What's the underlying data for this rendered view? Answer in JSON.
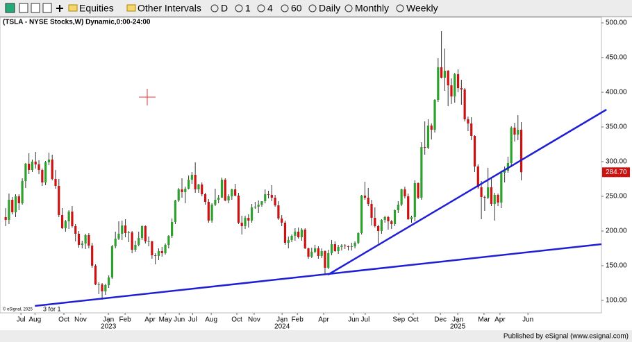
{
  "toolbar": {
    "items": [
      "Equities",
      "Other Intervals",
      "D",
      "1",
      "4",
      "60",
      "Daily",
      "Monthly",
      "Weekly"
    ]
  },
  "chart_data": {
    "type": "candlestick",
    "title": "(TSLA - NYSE Stocks,W) Dynamic,0:00-24:00",
    "up_color": "#2ea02e",
    "down_color": "#cc1111",
    "wick_color": "#333333",
    "ylim": [
      83,
      508
    ],
    "yticks": [
      {
        "value": 100,
        "label": "100.00"
      },
      {
        "value": 150,
        "label": "150.00"
      },
      {
        "value": 200,
        "label": "200.00"
      },
      {
        "value": 250,
        "label": "250.00"
      },
      {
        "value": 300,
        "label": "300.00"
      },
      {
        "value": 350,
        "label": "350.00"
      },
      {
        "value": 400,
        "label": "400.00"
      },
      {
        "value": 450,
        "label": "450.00"
      },
      {
        "value": 500,
        "label": "500.00"
      }
    ],
    "xlim": [
      -1.7,
      179.1
    ],
    "xticks": [
      {
        "value": 4.6,
        "label": "Jul"
      },
      {
        "value": 8.8,
        "label": "Aug"
      },
      {
        "value": 17.5,
        "label": "Oct"
      },
      {
        "value": 22.5,
        "label": "Nov"
      },
      {
        "value": 30.9,
        "label": "Jan"
      },
      {
        "value": 35.9,
        "label": "Feb"
      },
      {
        "value": 43.4,
        "label": "Apr"
      },
      {
        "value": 48,
        "label": "May"
      },
      {
        "value": 52.2,
        "label": "Jun"
      },
      {
        "value": 56.2,
        "label": "Jul"
      },
      {
        "value": 61.8,
        "label": "Aug"
      },
      {
        "value": 69.5,
        "label": "Oct"
      },
      {
        "value": 74.7,
        "label": "Nov"
      },
      {
        "value": 83.1,
        "label": "Jan"
      },
      {
        "value": 87.7,
        "label": "Feb"
      },
      {
        "value": 95.6,
        "label": "Apr"
      },
      {
        "value": 104.6,
        "label": "Jun"
      },
      {
        "value": 108.1,
        "label": "Jul"
      },
      {
        "value": 118.2,
        "label": "Sep"
      },
      {
        "value": 122.5,
        "label": "Oct"
      },
      {
        "value": 130.7,
        "label": "Dec"
      },
      {
        "value": 135.9,
        "label": "Jan"
      },
      {
        "value": 143.8,
        "label": "Mar"
      },
      {
        "value": 148.6,
        "label": "Apr"
      },
      {
        "value": 157,
        "label": "Jun"
      }
    ],
    "year_ticks": [
      {
        "value": 30.9,
        "label": "2023"
      },
      {
        "value": 83.1,
        "label": "2024"
      },
      {
        "value": 135.9,
        "label": "2025"
      }
    ],
    "candles": [
      [
        220,
        233,
        207,
        216
      ],
      [
        216,
        254,
        210,
        245
      ],
      [
        245,
        249,
        224,
        227
      ],
      [
        227,
        253,
        220,
        250
      ],
      [
        250,
        253,
        230,
        240
      ],
      [
        240,
        276,
        238,
        272
      ],
      [
        272,
        298,
        262,
        297
      ],
      [
        297,
        312,
        282,
        288
      ],
      [
        288,
        303,
        285,
        300
      ],
      [
        300,
        314,
        290,
        296
      ],
      [
        296,
        302,
        282,
        288
      ],
      [
        288,
        290,
        265,
        270
      ],
      [
        270,
        301,
        266,
        299
      ],
      [
        299,
        313,
        295,
        303
      ],
      [
        303,
        310,
        273,
        275
      ],
      [
        275,
        288,
        261,
        265
      ],
      [
        265,
        275,
        220,
        223
      ],
      [
        223,
        233,
        203,
        204
      ],
      [
        204,
        216,
        199,
        214
      ],
      [
        214,
        230,
        203,
        228
      ],
      [
        228,
        236,
        205,
        207
      ],
      [
        207,
        210,
        185,
        196
      ],
      [
        196,
        200,
        176,
        180
      ],
      [
        180,
        186,
        175,
        182
      ],
      [
        182,
        196,
        174,
        194
      ],
      [
        194,
        197,
        175,
        179
      ],
      [
        179,
        183,
        147,
        150
      ],
      [
        150,
        152,
        122,
        123
      ],
      [
        123,
        126,
        109,
        123
      ],
      [
        123,
        125,
        101,
        113
      ],
      [
        113,
        124,
        108,
        122
      ],
      [
        122,
        136,
        118,
        133
      ],
      [
        133,
        180,
        131,
        178
      ],
      [
        178,
        199,
        175,
        189
      ],
      [
        189,
        214,
        187,
        196
      ],
      [
        196,
        215,
        187,
        208
      ],
      [
        208,
        217,
        191,
        197
      ],
      [
        197,
        200,
        184,
        198
      ],
      [
        198,
        200,
        168,
        173
      ],
      [
        173,
        186,
        170,
        180
      ],
      [
        180,
        199,
        178,
        190
      ],
      [
        190,
        208,
        187,
        207
      ],
      [
        207,
        208,
        182,
        185
      ],
      [
        185,
        192,
        178,
        185
      ],
      [
        185,
        186,
        160,
        165
      ],
      [
        165,
        168,
        152,
        164
      ],
      [
        164,
        175,
        158,
        171
      ],
      [
        171,
        177,
        163,
        168
      ],
      [
        168,
        182,
        166,
        180
      ],
      [
        180,
        194,
        175,
        193
      ],
      [
        193,
        218,
        190,
        213
      ],
      [
        213,
        245,
        210,
        244
      ],
      [
        244,
        262,
        242,
        260
      ],
      [
        260,
        276,
        248,
        256
      ],
      [
        256,
        264,
        240,
        261
      ],
      [
        261,
        280,
        260,
        274
      ],
      [
        274,
        285,
        268,
        281
      ],
      [
        281,
        299,
        255,
        260
      ],
      [
        260,
        268,
        255,
        267
      ],
      [
        267,
        270,
        250,
        253
      ],
      [
        253,
        255,
        238,
        242
      ],
      [
        242,
        246,
        212,
        215
      ],
      [
        215,
        240,
        212,
        238
      ],
      [
        238,
        261,
        236,
        245
      ],
      [
        245,
        252,
        240,
        248
      ],
      [
        248,
        277,
        248,
        274
      ],
      [
        274,
        276,
        243,
        244
      ],
      [
        244,
        253,
        240,
        250
      ],
      [
        250,
        261,
        245,
        260
      ],
      [
        260,
        268,
        250,
        251
      ],
      [
        251,
        255,
        210,
        212
      ],
      [
        212,
        222,
        195,
        207
      ],
      [
        207,
        222,
        203,
        219
      ],
      [
        219,
        224,
        205,
        215
      ],
      [
        215,
        239,
        212,
        234
      ],
      [
        234,
        242,
        232,
        235
      ],
      [
        235,
        244,
        226,
        238
      ],
      [
        238,
        243,
        235,
        243
      ],
      [
        243,
        260,
        240,
        253
      ],
      [
        253,
        258,
        247,
        252
      ],
      [
        252,
        266,
        243,
        248
      ],
      [
        248,
        252,
        235,
        237
      ],
      [
        237,
        243,
        216,
        218
      ],
      [
        218,
        223,
        207,
        212
      ],
      [
        212,
        215,
        180,
        183
      ],
      [
        183,
        192,
        175,
        187
      ],
      [
        187,
        195,
        184,
        193
      ],
      [
        193,
        204,
        186,
        199
      ],
      [
        199,
        205,
        189,
        191
      ],
      [
        191,
        204,
        186,
        202
      ],
      [
        202,
        204,
        174,
        175
      ],
      [
        175,
        176,
        160,
        163
      ],
      [
        163,
        176,
        161,
        170
      ],
      [
        170,
        180,
        168,
        175
      ],
      [
        175,
        178,
        160,
        164
      ],
      [
        164,
        175,
        161,
        171
      ],
      [
        171,
        172,
        138,
        147
      ],
      [
        147,
        173,
        145,
        168
      ],
      [
        168,
        187,
        165,
        181
      ],
      [
        181,
        185,
        170,
        171
      ],
      [
        171,
        180,
        167,
        177
      ],
      [
        177,
        181,
        172,
        179
      ],
      [
        179,
        181,
        174,
        178
      ],
      [
        178,
        179,
        172,
        177
      ],
      [
        177,
        183,
        172,
        178
      ],
      [
        178,
        185,
        175,
        183
      ],
      [
        183,
        198,
        181,
        197
      ],
      [
        197,
        252,
        195,
        251
      ],
      [
        251,
        271,
        245,
        248
      ],
      [
        248,
        262,
        236,
        239
      ],
      [
        239,
        245,
        208,
        219
      ],
      [
        219,
        234,
        205,
        207
      ],
      [
        207,
        209,
        182,
        200
      ],
      [
        200,
        217,
        196,
        216
      ],
      [
        216,
        222,
        212,
        220
      ],
      [
        220,
        222,
        202,
        214
      ],
      [
        214,
        216,
        203,
        210
      ],
      [
        210,
        231,
        207,
        230
      ],
      [
        230,
        243,
        226,
        238
      ],
      [
        238,
        261,
        236,
        260
      ],
      [
        260,
        264,
        247,
        250
      ],
      [
        250,
        254,
        216,
        217
      ],
      [
        217,
        222,
        212,
        220
      ],
      [
        220,
        273,
        214,
        269
      ],
      [
        269,
        270,
        246,
        248
      ],
      [
        248,
        328,
        245,
        321
      ],
      [
        321,
        358,
        310,
        320
      ],
      [
        320,
        361,
        318,
        352
      ],
      [
        352,
        355,
        332,
        346
      ],
      [
        346,
        390,
        342,
        389
      ],
      [
        389,
        449,
        386,
        436
      ],
      [
        436,
        488,
        420,
        421
      ],
      [
        421,
        463,
        402,
        431
      ],
      [
        431,
        432,
        380,
        410
      ],
      [
        410,
        420,
        383,
        394
      ],
      [
        394,
        428,
        385,
        426
      ],
      [
        426,
        433,
        400,
        406
      ],
      [
        406,
        418,
        382,
        404
      ],
      [
        404,
        406,
        358,
        361
      ],
      [
        361,
        365,
        344,
        355
      ],
      [
        355,
        364,
        331,
        337
      ],
      [
        337,
        338,
        285,
        293
      ],
      [
        293,
        296,
        261,
        263
      ],
      [
        263,
        272,
        217,
        249
      ],
      [
        249,
        251,
        229,
        248
      ],
      [
        248,
        291,
        246,
        263
      ],
      [
        263,
        276,
        236,
        239
      ],
      [
        239,
        255,
        215,
        252
      ],
      [
        252,
        254,
        236,
        241
      ],
      [
        241,
        287,
        233,
        284
      ],
      [
        284,
        293,
        270,
        287
      ],
      [
        287,
        307,
        284,
        298
      ],
      [
        298,
        351,
        292,
        349
      ],
      [
        349,
        356,
        329,
        339
      ],
      [
        339,
        367,
        331,
        346
      ],
      [
        346,
        357,
        273,
        284.7
      ]
    ],
    "last_label": "284.70",
    "trendline_color": "#1f1fd6",
    "trendlines": [
      {
        "x": [
          8.8,
          179.1
        ],
        "y": [
          92,
          181
        ]
      },
      {
        "x": [
          96.9,
          180.6
        ],
        "y": [
          137,
          375
        ]
      }
    ],
    "split_note": "3 for 1",
    "copyright": "© eSignal, 2025"
  },
  "footer": "Published by eSignal (www.esignal.com)"
}
